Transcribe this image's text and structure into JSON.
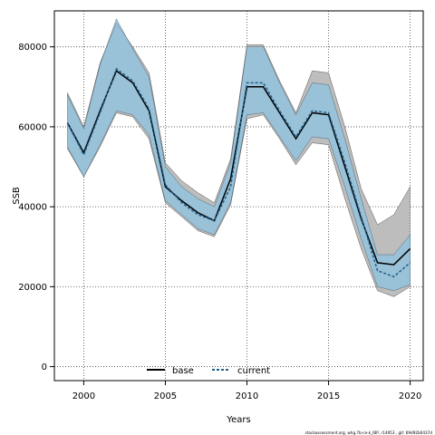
{
  "chart_data": {
    "type": "line",
    "title": "",
    "xlabel": "Years",
    "ylabel": "SSB",
    "xlim": [
      1998.2,
      2020.8
    ],
    "ylim": [
      -3500,
      89000
    ],
    "x_ticks": [
      2000,
      2005,
      2010,
      2015,
      2020
    ],
    "y_ticks": [
      0,
      20000,
      40000,
      60000,
      80000
    ],
    "grid": true,
    "legend": "bottom-center",
    "x": [
      1999,
      2000,
      2001,
      2002,
      2003,
      2004,
      2005,
      2006,
      2007,
      2008,
      2009,
      2010,
      2011,
      2012,
      2013,
      2014,
      2015,
      2016,
      2017,
      2018,
      2019,
      2020
    ],
    "series": [
      {
        "name": "base",
        "color": "#000000",
        "line_style": "solid",
        "band_color": "#bdbdbd",
        "values": [
          61000,
          53500,
          64000,
          74000,
          71000,
          64000,
          45000,
          41500,
          38500,
          36500,
          47000,
          70000,
          70000,
          63500,
          57000,
          63500,
          63000,
          50000,
          37000,
          26000,
          25500,
          29500
        ],
        "upper": [
          68500,
          60000,
          76000,
          86000,
          80000,
          73500,
          51000,
          46500,
          43500,
          41000,
          52000,
          80500,
          80500,
          71500,
          63500,
          74000,
          73500,
          60000,
          44500,
          35500,
          38000,
          45000
        ],
        "lower": [
          54500,
          47500,
          55000,
          63500,
          62500,
          57000,
          41000,
          37500,
          34000,
          32500,
          40500,
          62000,
          63000,
          57000,
          50500,
          56000,
          55500,
          42000,
          29500,
          19000,
          17500,
          20000
        ]
      },
      {
        "name": "current",
        "color": "#1f5f8b",
        "line_style": "dashed",
        "band_color": "#8dc3e0",
        "values": [
          61000,
          53000,
          63500,
          74500,
          71500,
          64500,
          45500,
          41000,
          38000,
          36500,
          45000,
          71000,
          71000,
          64000,
          57500,
          64000,
          63500,
          51000,
          37500,
          24000,
          22500,
          26000
        ],
        "upper": [
          68000,
          59500,
          75500,
          87000,
          79500,
          72500,
          50000,
          45000,
          42000,
          40000,
          51000,
          80000,
          80000,
          71000,
          63000,
          71000,
          70500,
          57000,
          42000,
          28000,
          28000,
          33000
        ],
        "lower": [
          55000,
          47500,
          55500,
          64000,
          63000,
          58000,
          41500,
          38000,
          34500,
          33000,
          41000,
          63000,
          63500,
          57500,
          51500,
          57500,
          57000,
          45000,
          32000,
          20000,
          19000,
          20500
        ]
      }
    ],
    "footnote": "stockassessment.org, whg.7b-ce-k_IBP, r14953 , git: 69d92b0437d"
  }
}
